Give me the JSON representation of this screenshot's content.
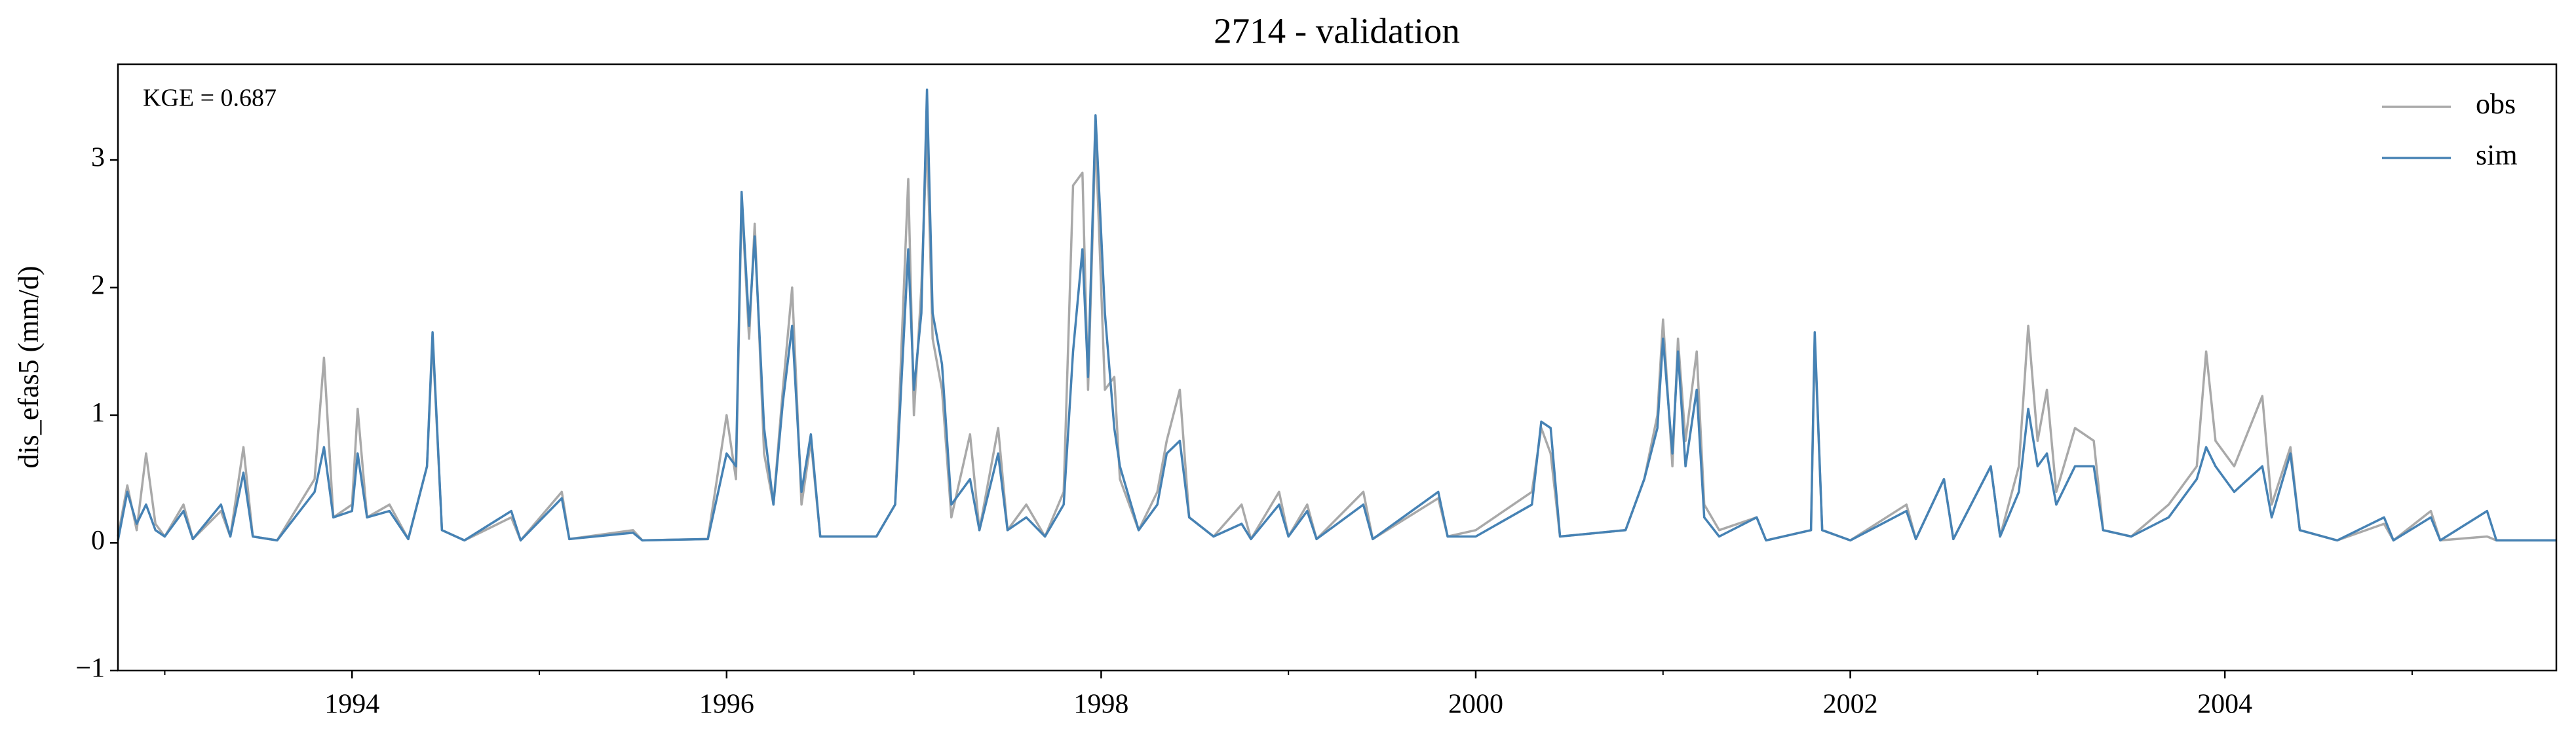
{
  "chart_data": {
    "type": "line",
    "title": "2714 - validation",
    "ylabel": "dis_efas5 (mm/d)",
    "annotation": "KGE = 0.687",
    "legend": "upper right",
    "grid": false,
    "xlim": [
      1992.75,
      2005.77
    ],
    "xticks": [
      1994,
      1996,
      1998,
      2000,
      2002,
      2004
    ],
    "xminorticks": [
      1993,
      1995,
      1997,
      1999,
      2001,
      2003,
      2005
    ],
    "ylim": [
      -1,
      3.75
    ],
    "yticks": [
      {
        "value": -1,
        "label": "−1"
      },
      0,
      1,
      2,
      3
    ],
    "x": [
      1992.75,
      1992.8,
      1992.85,
      1992.9,
      1992.95,
      1993.0,
      1993.1,
      1993.15,
      1993.3,
      1993.35,
      1993.42,
      1993.47,
      1993.6,
      1993.8,
      1993.85,
      1993.9,
      1994.0,
      1994.03,
      1994.08,
      1994.2,
      1994.3,
      1994.4,
      1994.43,
      1994.48,
      1994.6,
      1994.85,
      1994.9,
      1995.12,
      1995.16,
      1995.5,
      1995.55,
      1995.9,
      1996.0,
      1996.05,
      1996.08,
      1996.12,
      1996.15,
      1996.2,
      1996.25,
      1996.3,
      1996.35,
      1996.4,
      1996.45,
      1996.5,
      1996.8,
      1996.9,
      1996.97,
      1997.0,
      1997.04,
      1997.07,
      1997.1,
      1997.15,
      1997.2,
      1997.3,
      1997.35,
      1997.45,
      1997.5,
      1997.6,
      1997.7,
      1997.8,
      1997.85,
      1997.9,
      1997.93,
      1997.97,
      1998.02,
      1998.07,
      1998.1,
      1998.2,
      1998.3,
      1998.35,
      1998.42,
      1998.47,
      1998.6,
      1998.75,
      1998.8,
      1998.95,
      1999.0,
      1999.1,
      1999.15,
      1999.4,
      1999.45,
      1999.8,
      1999.85,
      2000.0,
      2000.3,
      2000.35,
      2000.4,
      2000.45,
      2000.8,
      2000.9,
      2000.97,
      2001.0,
      2001.05,
      2001.08,
      2001.12,
      2001.18,
      2001.22,
      2001.3,
      2001.5,
      2001.55,
      2001.79,
      2001.81,
      2001.85,
      2002.0,
      2002.3,
      2002.35,
      2002.5,
      2002.55,
      2002.75,
      2002.8,
      2002.9,
      2002.95,
      2003.0,
      2003.05,
      2003.1,
      2003.2,
      2003.3,
      2003.35,
      2003.5,
      2003.7,
      2003.85,
      2003.9,
      2003.95,
      2004.05,
      2004.2,
      2004.25,
      2004.35,
      2004.4,
      2004.6,
      2004.85,
      2004.9,
      2005.1,
      2005.15,
      2005.4,
      2005.45,
      2005.77
    ],
    "series": [
      {
        "name": "obs",
        "color": "#a9a9a9",
        "values": [
          0.05,
          0.45,
          0.1,
          0.7,
          0.15,
          0.05,
          0.3,
          0.03,
          0.25,
          0.05,
          0.75,
          0.05,
          0.02,
          0.5,
          1.45,
          0.2,
          0.3,
          1.05,
          0.2,
          0.3,
          0.03,
          0.6,
          1.6,
          0.1,
          0.02,
          0.2,
          0.02,
          0.4,
          0.03,
          0.1,
          0.02,
          0.03,
          1.0,
          0.5,
          2.7,
          1.6,
          2.5,
          0.7,
          0.3,
          1.2,
          2.0,
          0.3,
          0.8,
          0.05,
          0.05,
          0.3,
          2.85,
          1.0,
          2.0,
          3.2,
          1.6,
          1.2,
          0.2,
          0.85,
          0.1,
          0.9,
          0.1,
          0.3,
          0.05,
          0.4,
          2.8,
          2.9,
          1.2,
          3.2,
          1.2,
          1.3,
          0.5,
          0.1,
          0.4,
          0.8,
          1.2,
          0.2,
          0.05,
          0.3,
          0.03,
          0.4,
          0.05,
          0.3,
          0.03,
          0.4,
          0.03,
          0.35,
          0.05,
          0.1,
          0.4,
          0.9,
          0.7,
          0.05,
          0.1,
          0.5,
          1.0,
          1.75,
          0.6,
          1.6,
          0.8,
          1.5,
          0.3,
          0.1,
          0.2,
          0.02,
          0.1,
          1.6,
          0.1,
          0.02,
          0.3,
          0.03,
          0.5,
          0.03,
          0.6,
          0.05,
          0.6,
          1.7,
          0.8,
          1.2,
          0.4,
          0.9,
          0.8,
          0.1,
          0.05,
          0.3,
          0.6,
          1.5,
          0.8,
          0.6,
          1.15,
          0.3,
          0.75,
          0.1,
          0.02,
          0.15,
          0.02,
          0.25,
          0.02,
          0.05,
          0.02,
          0.02
        ]
      },
      {
        "name": "sim",
        "color": "#4682b4",
        "values": [
          0.02,
          0.4,
          0.15,
          0.3,
          0.1,
          0.05,
          0.25,
          0.03,
          0.3,
          0.05,
          0.55,
          0.05,
          0.02,
          0.4,
          0.75,
          0.2,
          0.25,
          0.7,
          0.2,
          0.25,
          0.03,
          0.6,
          1.65,
          0.1,
          0.02,
          0.25,
          0.02,
          0.35,
          0.03,
          0.08,
          0.02,
          0.03,
          0.7,
          0.6,
          2.75,
          1.7,
          2.4,
          0.9,
          0.3,
          1.1,
          1.7,
          0.4,
          0.85,
          0.05,
          0.05,
          0.3,
          2.3,
          1.2,
          1.8,
          3.55,
          1.8,
          1.4,
          0.3,
          0.5,
          0.1,
          0.7,
          0.1,
          0.2,
          0.05,
          0.3,
          1.5,
          2.3,
          1.3,
          3.35,
          1.8,
          0.9,
          0.6,
          0.1,
          0.3,
          0.7,
          0.8,
          0.2,
          0.05,
          0.15,
          0.03,
          0.3,
          0.05,
          0.25,
          0.03,
          0.3,
          0.03,
          0.4,
          0.05,
          0.05,
          0.3,
          0.95,
          0.9,
          0.05,
          0.1,
          0.5,
          0.9,
          1.6,
          0.7,
          1.5,
          0.6,
          1.2,
          0.2,
          0.05,
          0.2,
          0.02,
          0.1,
          1.65,
          0.1,
          0.02,
          0.25,
          0.03,
          0.5,
          0.03,
          0.6,
          0.05,
          0.4,
          1.05,
          0.6,
          0.7,
          0.3,
          0.6,
          0.6,
          0.1,
          0.05,
          0.2,
          0.5,
          0.75,
          0.6,
          0.4,
          0.6,
          0.2,
          0.7,
          0.1,
          0.02,
          0.2,
          0.02,
          0.2,
          0.02,
          0.25,
          0.02,
          0.02
        ]
      }
    ]
  }
}
